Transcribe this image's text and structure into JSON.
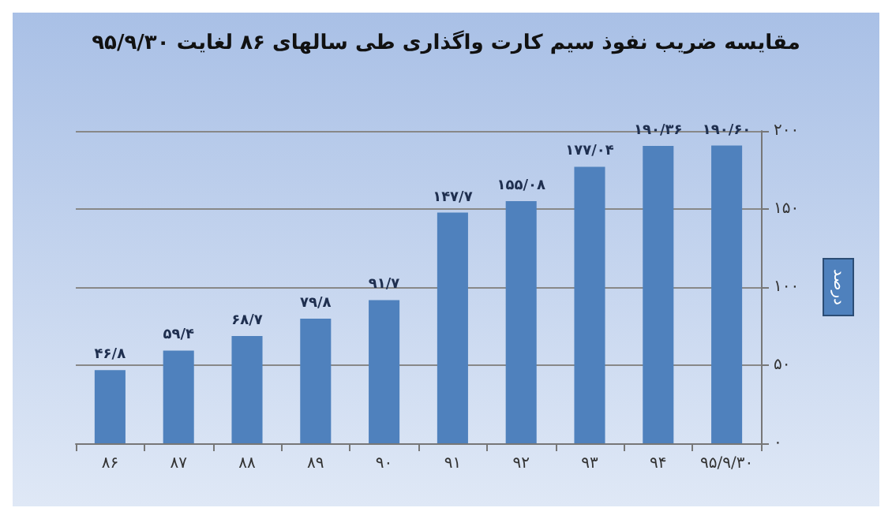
{
  "chart_data": {
    "type": "bar",
    "title": "مقایسه ضریب نفوذ سیم کارت واگذاری طی سالهای ۸۶ لغایت ۹۵/۹/۳۰",
    "ylabel": "درصد",
    "categories": [
      "۸۶",
      "۸۷",
      "۸۸",
      "۸۹",
      "۹۰",
      "۹۱",
      "۹۲",
      "۹۳",
      "۹۴",
      "۹۵/۹/۳۰"
    ],
    "values": [
      46.8,
      59.4,
      68.7,
      79.8,
      91.7,
      147.7,
      155.08,
      177.04,
      190.36,
      190.6
    ],
    "value_labels": [
      "۴۶/۸",
      "۵۹/۴",
      "۶۸/۷",
      "۷۹/۸",
      "۹۱/۷",
      "۱۴۷/۷",
      "۱۵۵/۰۸",
      "۱۷۷/۰۴",
      "۱۹۰/۳۶",
      "۱۹۰/۶۰"
    ],
    "color": "#4f81bd",
    "ylim": [
      0,
      200
    ],
    "yticks": [
      {
        "value": 0,
        "label": "۰"
      },
      {
        "value": 50,
        "label": "۵۰"
      },
      {
        "value": 100,
        "label": "۱۰۰"
      },
      {
        "value": 150,
        "label": "۱۵۰"
      },
      {
        "value": 200,
        "label": "۲۰۰"
      }
    ],
    "grid": "y"
  }
}
